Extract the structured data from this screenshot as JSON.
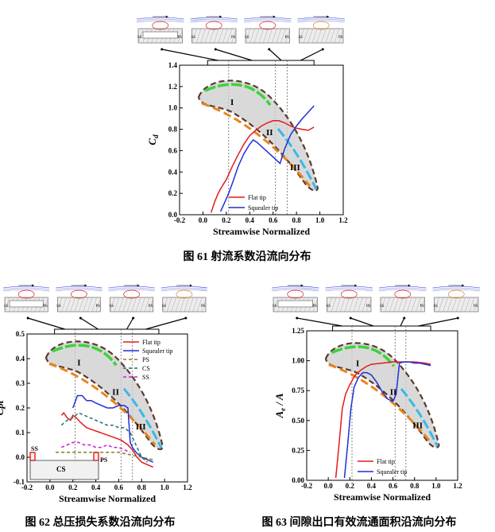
{
  "figures": [
    {
      "caption": "图 61  射流系数沿流向分布",
      "xlabel": "Streamwise Normalized",
      "ylabel": "C",
      "ylabel_sub": "d",
      "xticks": [
        "-0.2",
        "0.0",
        "0.2",
        "0.4",
        "0.6",
        "0.8",
        "1.0",
        "1.2"
      ],
      "yticks": [
        "0.0",
        "0.2",
        "0.4",
        "0.6",
        "0.8",
        "1.0",
        "1.2",
        "1.4"
      ],
      "region_labels": [
        "I",
        "II",
        "III"
      ],
      "inset_labels": [
        "SS",
        "PS",
        "SS",
        "PS",
        "SS",
        "PS",
        "SS",
        "PS"
      ],
      "legend": [
        "Flat tip",
        "Squealer tip"
      ]
    },
    {
      "caption": "图 62 总压损失系数沿流向分布",
      "xlabel": "Streamwise Normalized",
      "ylabel": "Cpt",
      "xticks": [
        "-0.2",
        "0.0",
        "0.2",
        "0.4",
        "0.6",
        "0.8",
        "1.0",
        "1.2"
      ],
      "yticks": [
        "-0.1",
        "0.0",
        "0.1",
        "0.2",
        "0.3",
        "0.4",
        "0.5"
      ],
      "region_labels": [
        "I",
        "II",
        "III"
      ],
      "inset_labels": [
        "SS",
        "PS",
        "SS",
        "PS",
        "SS",
        "PS",
        "SS",
        "PS"
      ],
      "legend": [
        "Flat tip",
        "Squealer tip",
        "PS",
        "CS",
        "SS"
      ],
      "tip_sketch_labels": [
        "SS",
        "CS",
        "PS"
      ]
    },
    {
      "caption": "图 63 间隙出口有效流通面积沿流向分布",
      "xlabel": "Streamwise Normalized",
      "ylabel": "A",
      "ylabel_sub": "e",
      "ylabel_tail": "/ A",
      "xticks": [
        "-0.2",
        "0.0",
        "0.2",
        "0.4",
        "0.6",
        "0.8",
        "1.0",
        "1.2"
      ],
      "yticks": [
        "0.00",
        "0.25",
        "0.50",
        "0.75",
        "1.00",
        "1.25"
      ],
      "region_labels": [
        "I",
        "II",
        "III"
      ],
      "inset_labels": [
        "SS",
        "PS",
        "SS",
        "PS",
        "SS",
        "PS",
        "SS",
        "PS"
      ],
      "legend": [
        "Flat tip",
        "Squealer tip"
      ]
    }
  ],
  "colors": {
    "flat": "#e41a1c",
    "squealer": "#1f2fd6",
    "ps": "#8a7a1a",
    "cs": "#1f6f6f",
    "ss": "#d21ad2",
    "blade_fill": "#cfcfcf",
    "blade_outline": "#5a3b2e",
    "band_orange": "#e8851f",
    "band_green": "#3cd23c",
    "band_cyan": "#3ab7e8"
  },
  "chart_data": [
    {
      "type": "line",
      "title": "",
      "xlabel": "Streamwise Normalized",
      "ylabel": "Cd",
      "xlim": [
        -0.2,
        1.2
      ],
      "ylim": [
        0.0,
        1.4
      ],
      "series": [
        {
          "name": "Flat tip",
          "x": [
            0.07,
            0.1,
            0.13,
            0.16,
            0.2,
            0.25,
            0.3,
            0.35,
            0.4,
            0.45,
            0.5,
            0.55,
            0.6,
            0.65,
            0.7,
            0.75,
            0.8,
            0.85,
            0.9,
            0.95
          ],
          "y": [
            0.02,
            0.12,
            0.2,
            0.26,
            0.33,
            0.45,
            0.56,
            0.66,
            0.74,
            0.79,
            0.83,
            0.86,
            0.88,
            0.88,
            0.86,
            0.83,
            0.81,
            0.8,
            0.79,
            0.82
          ]
        },
        {
          "name": "Squealer tip",
          "x": [
            0.15,
            0.18,
            0.22,
            0.26,
            0.3,
            0.35,
            0.4,
            0.43,
            0.46,
            0.5,
            0.54,
            0.58,
            0.62,
            0.66,
            0.7,
            0.75,
            0.8,
            0.85,
            0.9,
            0.95
          ],
          "y": [
            0.03,
            0.1,
            0.2,
            0.32,
            0.45,
            0.57,
            0.66,
            0.7,
            0.68,
            0.64,
            0.6,
            0.56,
            0.52,
            0.48,
            0.62,
            0.75,
            0.83,
            0.9,
            0.96,
            1.02
          ]
        }
      ]
    },
    {
      "type": "line",
      "title": "",
      "xlabel": "Streamwise Normalized",
      "ylabel": "Cpt",
      "xlim": [
        -0.2,
        1.2
      ],
      "ylim": [
        -0.1,
        0.5
      ],
      "series": [
        {
          "name": "Flat tip",
          "x": [
            0.1,
            0.12,
            0.15,
            0.18,
            0.2,
            0.23,
            0.27,
            0.32,
            0.38,
            0.44,
            0.5,
            0.56,
            0.62,
            0.68,
            0.72,
            0.76,
            0.8,
            0.85,
            0.9
          ],
          "y": [
            0.17,
            0.18,
            0.16,
            0.15,
            0.17,
            0.16,
            0.14,
            0.12,
            0.11,
            0.1,
            0.09,
            0.08,
            0.07,
            0.05,
            0.03,
            0.0,
            -0.02,
            -0.03,
            -0.04
          ]
        },
        {
          "name": "Squealer tip",
          "x": [
            0.2,
            0.24,
            0.28,
            0.32,
            0.36,
            0.4,
            0.45,
            0.5,
            0.55,
            0.6,
            0.65,
            0.68,
            0.7,
            0.72,
            0.75,
            0.8,
            0.85,
            0.9
          ],
          "y": [
            0.2,
            0.25,
            0.25,
            0.23,
            0.23,
            0.22,
            0.21,
            0.2,
            0.2,
            0.21,
            0.21,
            0.2,
            0.06,
            0.04,
            0.02,
            0.0,
            -0.01,
            -0.02
          ]
        },
        {
          "name": "PS",
          "x": [
            0.05,
            0.1,
            0.2,
            0.3,
            0.4,
            0.5,
            0.6,
            0.7,
            0.8,
            0.9
          ],
          "y": [
            0.02,
            0.02,
            0.02,
            0.02,
            0.02,
            0.02,
            0.02,
            0.01,
            0.0,
            -0.01
          ]
        },
        {
          "name": "CS",
          "x": [
            0.1,
            0.15,
            0.2,
            0.25,
            0.3,
            0.35,
            0.4,
            0.45,
            0.5,
            0.55,
            0.6,
            0.65,
            0.7,
            0.75,
            0.8,
            0.85
          ],
          "y": [
            0.13,
            0.15,
            0.16,
            0.18,
            0.17,
            0.16,
            0.15,
            0.14,
            0.13,
            0.13,
            0.12,
            0.12,
            0.1,
            0.05,
            0.0,
            -0.02
          ]
        },
        {
          "name": "SS",
          "x": [
            0.1,
            0.15,
            0.2,
            0.25,
            0.3,
            0.35,
            0.4,
            0.45,
            0.5,
            0.55,
            0.6,
            0.65,
            0.7
          ],
          "y": [
            0.04,
            0.05,
            0.06,
            0.06,
            0.05,
            0.05,
            0.04,
            0.04,
            0.05,
            0.04,
            0.04,
            0.03,
            0.02
          ]
        }
      ]
    },
    {
      "type": "line",
      "title": "",
      "xlabel": "Streamwise Normalized",
      "ylabel": "Ae/A",
      "xlim": [
        -0.2,
        1.2
      ],
      "ylim": [
        0.0,
        1.25
      ],
      "series": [
        {
          "name": "Flat tip",
          "x": [
            0.07,
            0.1,
            0.13,
            0.16,
            0.2,
            0.25,
            0.3,
            0.35,
            0.4,
            0.5,
            0.6,
            0.7,
            0.8,
            0.9,
            0.95
          ],
          "y": [
            0.02,
            0.3,
            0.6,
            0.72,
            0.8,
            0.88,
            0.92,
            0.95,
            0.97,
            0.98,
            0.99,
            0.99,
            0.99,
            0.98,
            0.97
          ]
        },
        {
          "name": "Squealer tip",
          "x": [
            0.15,
            0.18,
            0.21,
            0.24,
            0.28,
            0.32,
            0.36,
            0.4,
            0.45,
            0.5,
            0.55,
            0.6,
            0.63,
            0.66,
            0.7,
            0.75,
            0.8,
            0.85,
            0.9,
            0.95
          ],
          "y": [
            0.02,
            0.3,
            0.6,
            0.78,
            0.86,
            0.9,
            0.9,
            0.88,
            0.82,
            0.74,
            0.68,
            0.66,
            0.72,
            0.98,
            0.99,
            0.99,
            0.98,
            0.98,
            0.97,
            0.96
          ]
        }
      ]
    }
  ]
}
